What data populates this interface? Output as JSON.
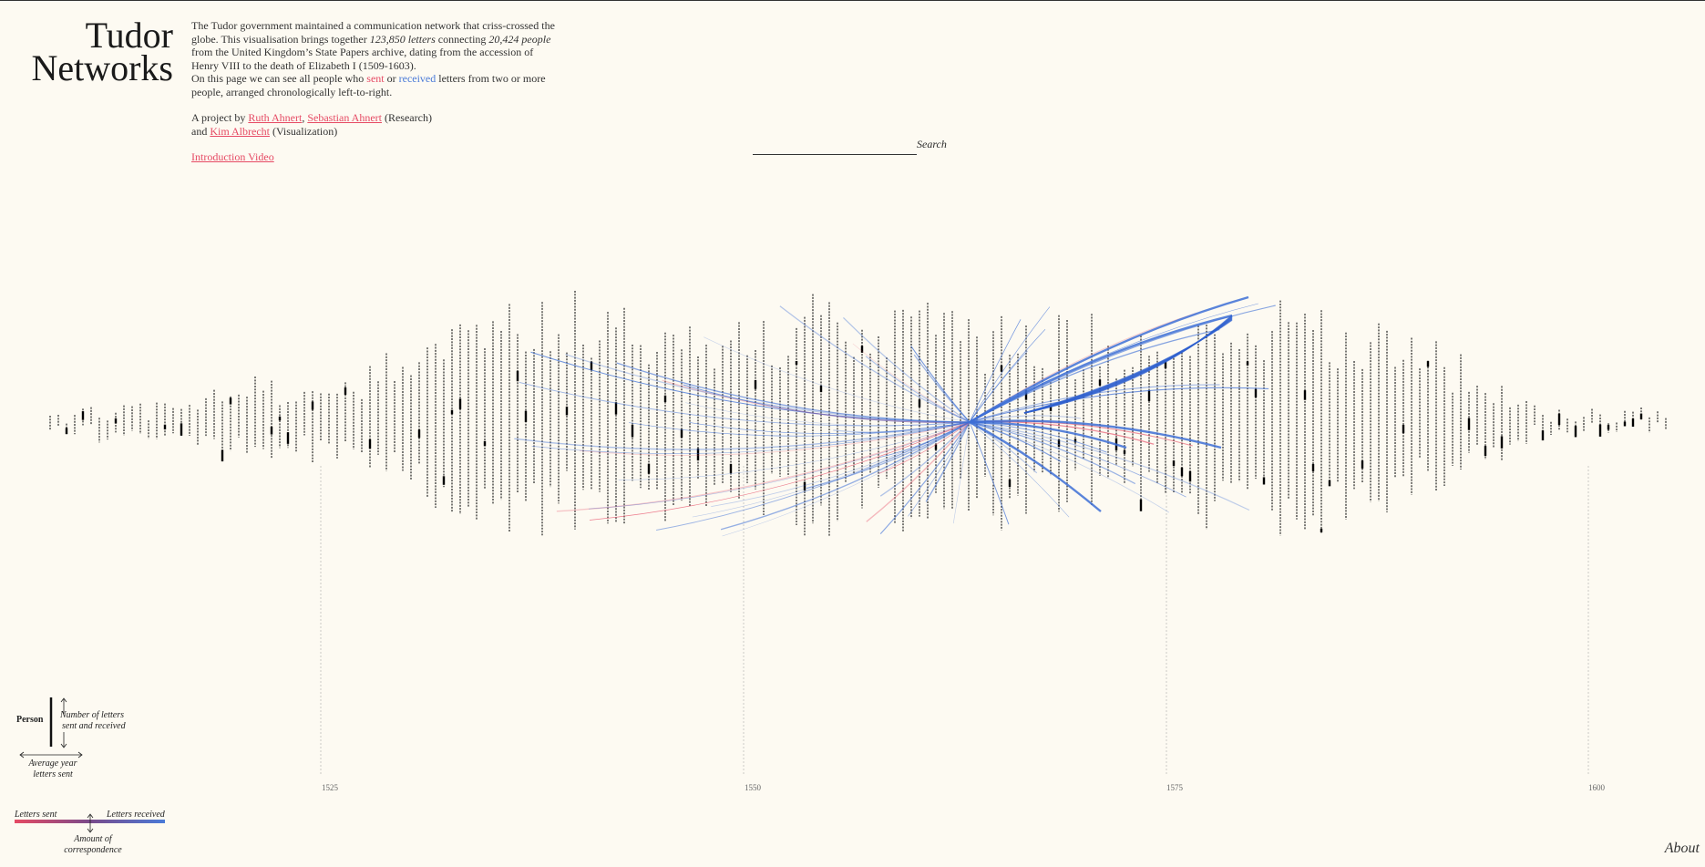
{
  "title": {
    "line1": "Tudor",
    "line2": "Networks"
  },
  "intro": {
    "p1_a": "The Tudor government maintained a communication network that criss-crossed the globe. This visualisation brings together ",
    "letters": "123,850 letters",
    "p1_b": " connecting ",
    "people": "20,424 people",
    "p1_c": " from the United Kingdom’s State Papers archive, dating from the accession of Henry VIII to the death of Elizabeth I (1509-1603).",
    "p2_a": "On this page we can see all people who ",
    "sent_word": "sent",
    "p2_b": " or ",
    "received_word": "received",
    "p2_c": " letters from two or more people, arranged chronologically left-to-right.",
    "project_prefix": "A project by ",
    "author1": "Ruth Ahnert",
    "comma": ", ",
    "author2": "Sebastian Ahnert",
    "research": " (Research)",
    "and_prefix": "and ",
    "author3": "Kim Albrecht",
    "visualization": " (Visualization)",
    "video_link": "Introduction Video"
  },
  "search": {
    "placeholder": "",
    "label": "Search"
  },
  "axis": {
    "ticks": [
      "1525",
      "1550",
      "1575",
      "1600"
    ]
  },
  "legend": {
    "person": "Person",
    "count_label_1": "Number of letters",
    "count_label_2": "sent and received",
    "year_label_1": "Average year",
    "year_label_2": "letters sent",
    "sent": "Letters sent",
    "received": "Letters received",
    "amount_1": "Amount of",
    "amount_2": "correspondence"
  },
  "about": "About",
  "colors": {
    "sent": "#e64a64",
    "received": "#4a7ad8",
    "background": "#fdfaf2"
  }
}
